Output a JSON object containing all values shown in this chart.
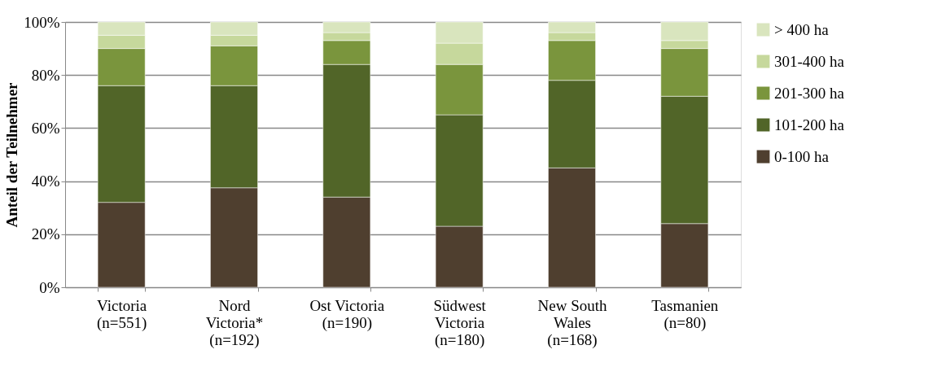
{
  "chart_data": {
    "type": "bar",
    "stacked": true,
    "ylabel": "Anteil der Teilnehmer",
    "categories": [
      "Victoria\n\n(n=551)",
      "Nord\nVictoria*\n(n=192)",
      "Ost Victoria\n\n(n=190)",
      "Südwest\nVictoria\n(n=180)",
      "New South\nWales\n(n=168)",
      "Tasmanien\n\n(n=80)"
    ],
    "series": [
      {
        "name": "0-100 ha",
        "color": "#4f3f2f",
        "values": [
          32,
          37.5,
          34,
          23,
          45,
          24
        ]
      },
      {
        "name": "101-200 ha",
        "color": "#516528",
        "values": [
          44,
          38.5,
          50,
          42,
          33,
          48
        ]
      },
      {
        "name": "201-300 ha",
        "color": "#7a953d",
        "values": [
          14,
          15,
          9,
          19,
          15,
          18
        ]
      },
      {
        "name": "301-400 ha",
        "color": "#c6d89c",
        "values": [
          5,
          4,
          3,
          8,
          3,
          3
        ]
      },
      {
        "name": "> 400 ha",
        "color": "#d9e5be",
        "values": [
          5,
          5,
          4,
          8,
          4,
          7
        ]
      }
    ],
    "ylim": [
      0,
      100
    ],
    "yticks": [
      {
        "value": 0,
        "label": "0%"
      },
      {
        "value": 20,
        "label": "20%"
      },
      {
        "value": 40,
        "label": "40%"
      },
      {
        "value": 60,
        "label": "60%"
      },
      {
        "value": 80,
        "label": "80%"
      },
      {
        "value": 100,
        "label": "100%"
      }
    ],
    "grid": "y",
    "legend": "right"
  }
}
